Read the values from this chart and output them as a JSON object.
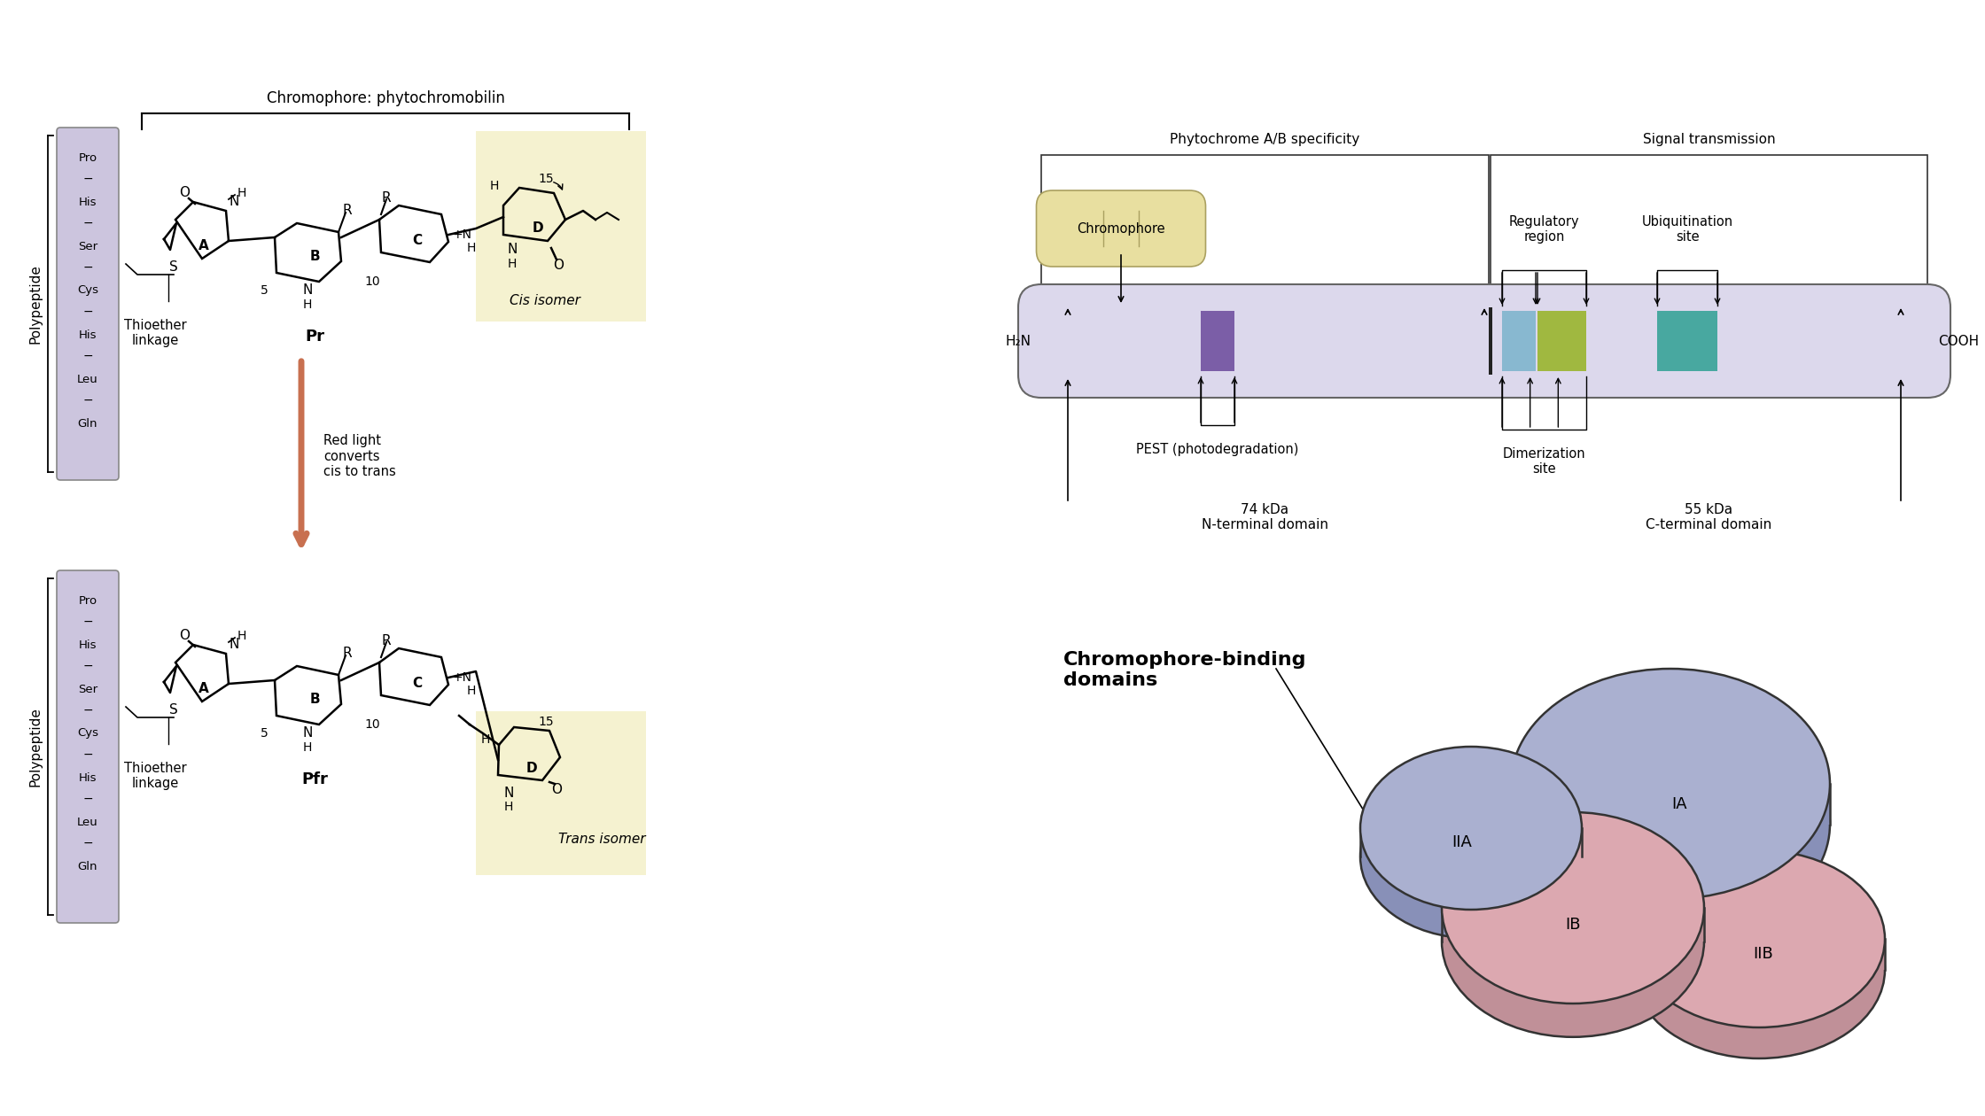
{
  "bg_color": "#ffffff",
  "polypeptide_residues": [
    "Pro",
    "His",
    "Ser",
    "Cys",
    "His",
    "Leu",
    "Gln"
  ],
  "chromophore_label": "Chromophore: phytochromobilin",
  "thioether_label": "Thioether\nlinkage",
  "pr_label": "Pr",
  "pfr_label": "Pfr",
  "cis_label": "Cis isomer",
  "trans_label": "Trans isomer",
  "red_light_label": "Red light\nconverts\ncis to trans",
  "polypeptide_label": "Polypeptide",
  "phytochrome_specificity_label": "Phytochrome A/B specificity",
  "signal_transmission_label": "Signal transmission",
  "chromophore_box_label": "Chromophore",
  "pest_label": "PEST (photodegradation)",
  "regulatory_label": "Regulatory\nregion",
  "ubiquitination_label": "Ubiquitination\nsite",
  "dimerization_label": "Dimerization\nsite",
  "n_terminal_label": "74 kDa\nN-terminal domain",
  "c_terminal_label": "55 kDa\nC-terminal domain",
  "h2n_label": "H₂N",
  "cooh_label": "COOH",
  "chromophore_binding_label": "Chromophore-binding\ndomains",
  "lavender": "#ccc5de",
  "light_lavender": "#dcd8ec",
  "purple_segment": "#7b5ea7",
  "blue_segment": "#88b8d0",
  "green_segment": "#a0b840",
  "teal_segment": "#48a8a0",
  "black_segment": "#222222",
  "yellow_bg": "#f5f2d0",
  "chromophore_yellow": "#e8dfa0",
  "arrow_color": "#c87050",
  "pink_domain": "#dca8b0",
  "blue_domain": "#aab0d0",
  "pink_domain_dark": "#c09098",
  "blue_domain_dark": "#8890b8"
}
